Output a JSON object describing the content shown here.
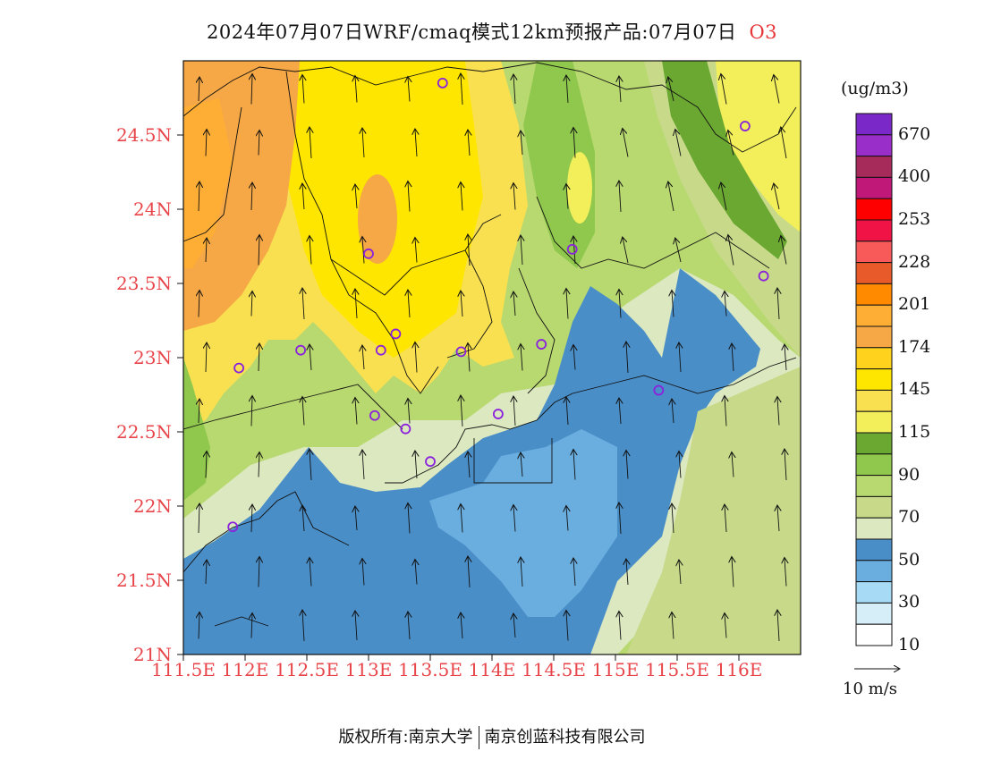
{
  "title": {
    "main": "2024年07月07日WRF/cmaq模式12km预报产品:07月07日",
    "pollutant": "O3"
  },
  "axes": {
    "lat_ticks": [
      "24.5N",
      "24N",
      "23.5N",
      "23N",
      "22.5N",
      "22N",
      "21.5N",
      "21N"
    ],
    "lon_ticks": [
      "111.5E",
      "112E",
      "112.5E",
      "113E",
      "113.5E",
      "114E",
      "114.5E",
      "115E",
      "115.5E",
      "116E"
    ]
  },
  "colorbar": {
    "unit": "(ug/m3)",
    "labels": [
      "670",
      "400",
      "253",
      "228",
      "201",
      "174",
      "145",
      "115",
      "90",
      "70",
      "50",
      "30",
      "10"
    ],
    "colors": [
      "#7a28c8",
      "#9a2ec8",
      "#a62a5a",
      "#c01878",
      "#ff0000",
      "#f01446",
      "#f85a5a",
      "#e85a2a",
      "#ff8a00",
      "#ffae35",
      "#f5a845",
      "#ffd21e",
      "#ffe600",
      "#f8e050",
      "#f2ef5a",
      "#6aa832",
      "#8fc84c",
      "#b8d870",
      "#c8da8a",
      "#dce8c0",
      "#4a8ec8",
      "#6aaee0",
      "#a6daf5",
      "#d6eef8",
      "#ffffff"
    ]
  },
  "wind_reference": {
    "label": "10  m/s"
  },
  "stations": {
    "color": "#8a22dd",
    "points": [
      {
        "lon": 113.6,
        "lat": 24.85
      },
      {
        "lon": 116.05,
        "lat": 24.56
      },
      {
        "lon": 113.0,
        "lat": 23.7
      },
      {
        "lon": 114.65,
        "lat": 23.73
      },
      {
        "lon": 116.2,
        "lat": 23.55
      },
      {
        "lon": 113.22,
        "lat": 23.16
      },
      {
        "lon": 113.1,
        "lat": 23.05
      },
      {
        "lon": 112.45,
        "lat": 23.05
      },
      {
        "lon": 111.95,
        "lat": 22.93
      },
      {
        "lon": 113.75,
        "lat": 23.04
      },
      {
        "lon": 114.4,
        "lat": 23.09
      },
      {
        "lon": 115.35,
        "lat": 22.78
      },
      {
        "lon": 113.05,
        "lat": 22.61
      },
      {
        "lon": 114.05,
        "lat": 22.62
      },
      {
        "lon": 113.3,
        "lat": 22.52
      },
      {
        "lon": 113.5,
        "lat": 22.3
      },
      {
        "lon": 111.9,
        "lat": 21.86
      }
    ]
  },
  "footer": {
    "left": "版权所有:南京大学",
    "right": "南京创蓝科技有限公司"
  }
}
